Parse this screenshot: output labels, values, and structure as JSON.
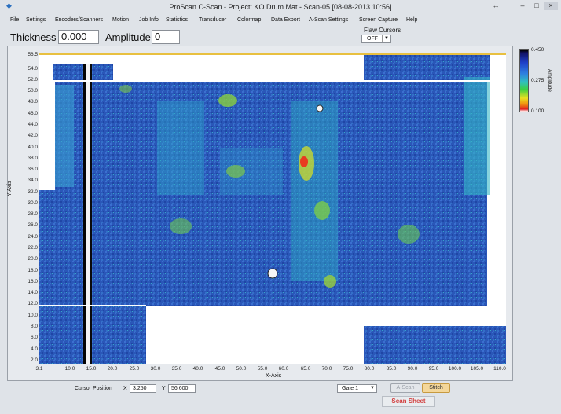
{
  "window": {
    "title": "ProScan C-Scan - Project: KO Drum Mat - Scan-05  [08-08-2013  10:56]",
    "restore_glyph": "↔",
    "min_glyph": "–",
    "max_glyph": "□",
    "close_glyph": "×"
  },
  "menu": {
    "items": [
      "File",
      "Settings",
      "Encoders/Scanners",
      "Motion",
      "Job Info",
      "Statistics",
      "Transducer",
      "Colormap",
      "Data Export",
      "A-Scan Settings",
      "Screen Capture",
      "Help"
    ]
  },
  "toolbar": {
    "thickness_label": "Thickness",
    "thickness_value": "0.000",
    "amplitude_label": "Amplitude",
    "amplitude_value": "0",
    "flaw_cursors_label": "Flaw Cursors",
    "flaw_cursors_value": "OFF"
  },
  "plot": {
    "y_axis_title": "Y-Axis",
    "x_axis_title": "X-Axis",
    "y_ticks": [
      "56.5",
      "54.0",
      "52.0",
      "50.0",
      "48.0",
      "46.0",
      "44.0",
      "42.0",
      "40.0",
      "38.0",
      "36.0",
      "34.0",
      "32.0",
      "30.0",
      "28.0",
      "26.0",
      "24.0",
      "22.0",
      "20.0",
      "18.0",
      "16.0",
      "14.0",
      "12.0",
      "10.0",
      "8.0",
      "6.0",
      "4.0",
      "2.0"
    ],
    "x_ticks": [
      "3.1",
      "10.0",
      "15.0",
      "20.0",
      "25.0",
      "30.0",
      "35.0",
      "40.0",
      "45.0",
      "50.0",
      "55.0",
      "60.0",
      "65.0",
      "70.0",
      "75.0",
      "80.0",
      "85.0",
      "90.0",
      "95.0",
      "100.0",
      "105.0",
      "110.0"
    ]
  },
  "colorbar": {
    "max": "0.450",
    "mid": "0.275",
    "min": "0.100",
    "title": "Amplitude"
  },
  "status": {
    "cursor_position_label": "Cursor Position",
    "x_label": "X",
    "x_value": "3.250",
    "y_label": "Y",
    "y_value": "56.600",
    "gate_value": "Gate 1",
    "ascan_label": "A-Scan",
    "stitch_label": "Stitch",
    "scan_sheet_label": "Scan Sheet"
  },
  "icons": {
    "app": "app-icon",
    "dropdown": "chevron-down-icon"
  }
}
